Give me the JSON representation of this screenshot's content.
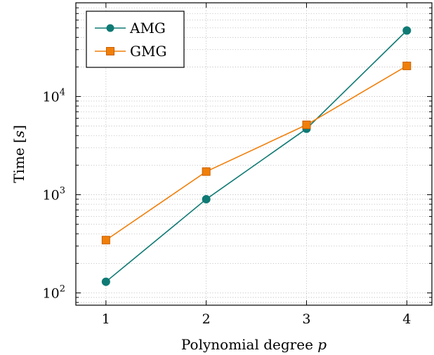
{
  "chart_data": {
    "type": "line",
    "xlabel": "Polynomial degree",
    "xlabel_var": "p",
    "ylabel": "Time",
    "ylabel_unit": "s",
    "x": [
      1,
      2,
      3,
      4
    ],
    "xlim": [
      0.7,
      4.25
    ],
    "ylim": [
      75,
      90000
    ],
    "yscale": "log",
    "x_ticks": [
      "1",
      "2",
      "3",
      "4"
    ],
    "y_ticks": [
      {
        "value": 100,
        "base": "10",
        "exp": "2"
      },
      {
        "value": 1000,
        "base": "10",
        "exp": "3"
      },
      {
        "value": 10000,
        "base": "10",
        "exp": "4"
      }
    ],
    "grid": true,
    "legend_position": "top-left",
    "series": [
      {
        "name": "AMG",
        "values": [
          130,
          900,
          4700,
          47000
        ],
        "color": "#0f7a74",
        "marker": "circle"
      },
      {
        "name": "GMG",
        "values": [
          345,
          1720,
          5150,
          20500
        ],
        "color": "#f07f0a",
        "marker": "square"
      }
    ]
  }
}
